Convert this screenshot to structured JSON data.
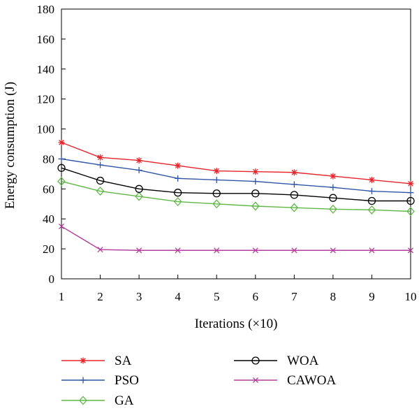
{
  "chart_data": {
    "type": "line",
    "title": "",
    "xlabel": "Iterations (×10)",
    "ylabel": "Energy consumption (J)",
    "x": [
      1,
      2,
      3,
      4,
      5,
      6,
      7,
      8,
      9,
      10
    ],
    "xlim": [
      1,
      10
    ],
    "ylim": [
      0,
      180
    ],
    "xticks": [
      "1",
      "2",
      "3",
      "4",
      "5",
      "6",
      "7",
      "8",
      "9",
      "10"
    ],
    "yticks": [
      "0",
      "20",
      "40",
      "60",
      "80",
      "100",
      "120",
      "140",
      "160",
      "180"
    ],
    "grid": false,
    "legend_position": "bottom",
    "series": [
      {
        "name": "SA",
        "color": "#e8232a",
        "marker": "asterisk",
        "values": [
          91,
          81,
          79,
          75.5,
          72,
          71.5,
          71,
          68.5,
          66,
          63.5
        ]
      },
      {
        "name": "PSO",
        "color": "#2f55a8",
        "marker": "plus",
        "values": [
          80,
          76,
          72.5,
          67,
          66,
          65,
          63,
          61,
          58.5,
          57.5
        ]
      },
      {
        "name": "GA",
        "color": "#5fb846",
        "marker": "diamond",
        "values": [
          65,
          58.5,
          55,
          51.5,
          50,
          48.5,
          47.5,
          46.5,
          46,
          45
        ]
      },
      {
        "name": "WOA",
        "color": "#000000",
        "marker": "circle",
        "values": [
          74,
          65.5,
          60,
          57.5,
          57,
          57,
          56,
          54,
          52,
          52
        ]
      },
      {
        "name": "CAWOA",
        "color": "#b43d9a",
        "marker": "x",
        "values": [
          35,
          19.5,
          19,
          19,
          19,
          19,
          19,
          19,
          19,
          19
        ]
      }
    ]
  }
}
